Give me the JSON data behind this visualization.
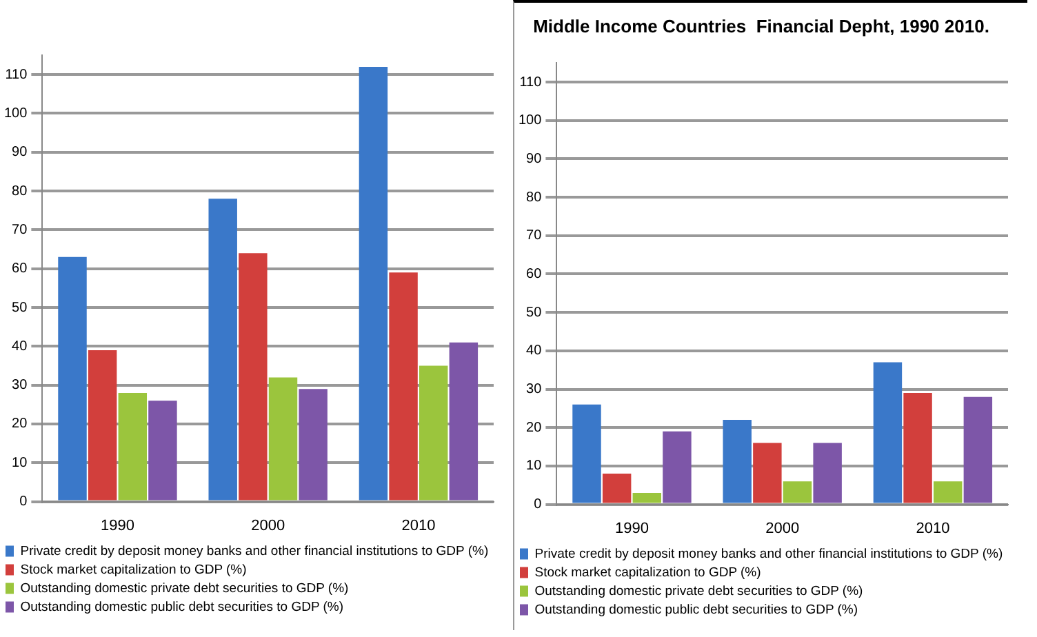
{
  "chart_data": [
    {
      "type": "bar",
      "categories": [
        "1990",
        "2000",
        "2010"
      ],
      "series": [
        {
          "name": "Private credit by deposit money banks and other financial institutions to GDP (%)",
          "color": "#3a78c9",
          "values": [
            63,
            78,
            112
          ]
        },
        {
          "name": "Stock market capitalization to GDP (%)",
          "color": "#d23f3c",
          "values": [
            39,
            64,
            59
          ]
        },
        {
          "name": "Outstanding domestic private debt securities to GDP (%)",
          "color": "#9bc53d",
          "values": [
            28,
            32,
            35
          ]
        },
        {
          "name": "Outstanding domestic public debt securities to GDP (%)",
          "color": "#7d56a8",
          "values": [
            26,
            29,
            41
          ]
        }
      ],
      "ylim": [
        0,
        115
      ],
      "yticks": [
        0,
        10,
        20,
        30,
        40,
        50,
        60,
        70,
        80,
        90,
        100,
        110
      ],
      "grid": "y",
      "legend": "bottom"
    },
    {
      "type": "bar",
      "title": "Middle Income Countries  Financial Depht, 1990 2010.",
      "categories": [
        "1990",
        "2000",
        "2010"
      ],
      "series": [
        {
          "name": "Private credit by deposit money banks and other financial institutions to GDP (%)",
          "color": "#3a78c9",
          "values": [
            26,
            22,
            37
          ]
        },
        {
          "name": "Stock market capitalization to GDP (%)",
          "color": "#d23f3c",
          "values": [
            8,
            16,
            29
          ]
        },
        {
          "name": "Outstanding domestic private debt securities to GDP (%)",
          "color": "#9bc53d",
          "values": [
            3,
            6,
            6
          ]
        },
        {
          "name": "Outstanding domestic public debt securities to GDP (%)",
          "color": "#7d56a8",
          "values": [
            19,
            16,
            28
          ]
        }
      ],
      "ylim": [
        0,
        115
      ],
      "yticks": [
        0,
        10,
        20,
        30,
        40,
        50,
        60,
        70,
        80,
        90,
        100,
        110
      ],
      "grid": "y",
      "legend": "bottom"
    }
  ]
}
